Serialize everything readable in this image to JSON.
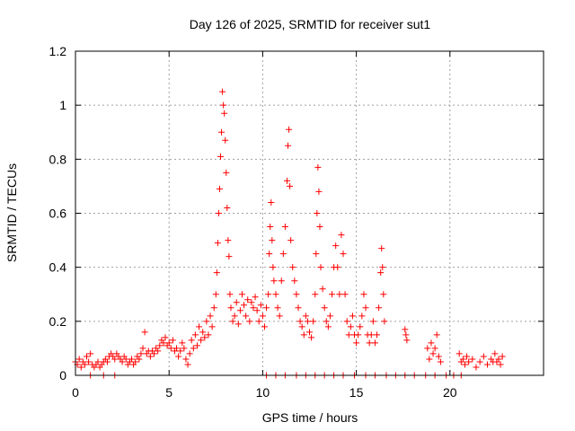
{
  "chart_data": {
    "type": "scatter",
    "title": "Day 126 of 2025, SRMTID for receiver sut1",
    "xlabel": "GPS time / hours",
    "ylabel": "SRMTID / TECUs",
    "xlim": [
      0,
      25
    ],
    "ylim": [
      0,
      1.2
    ],
    "xticks": [
      0,
      5,
      10,
      15,
      20
    ],
    "xtick_labels": [
      "0",
      "5",
      "10",
      "15",
      "20"
    ],
    "yticks": [
      0,
      0.2,
      0.4,
      0.6,
      0.8,
      1.0,
      1.2
    ],
    "ytick_labels": [
      "0",
      "0.2",
      "0.4",
      "0.6",
      "0.8",
      "1",
      "1.2"
    ],
    "grid": true,
    "marker": "plus",
    "color": "#ff0000",
    "series": [
      {
        "name": "sut1",
        "points": [
          [
            0.0,
            0.05
          ],
          [
            0.1,
            0.04
          ],
          [
            0.2,
            0.06
          ],
          [
            0.3,
            0.03
          ],
          [
            0.4,
            0.05
          ],
          [
            0.5,
            0.04
          ],
          [
            0.6,
            0.07
          ],
          [
            0.7,
            0.05
          ],
          [
            0.8,
            0.08
          ],
          [
            0.9,
            0.04
          ],
          [
            1.0,
            0.03
          ],
          [
            1.1,
            0.04
          ],
          [
            1.2,
            0.05
          ],
          [
            1.3,
            0.03
          ],
          [
            1.4,
            0.04
          ],
          [
            1.5,
            0.05
          ],
          [
            1.6,
            0.06
          ],
          [
            1.7,
            0.05
          ],
          [
            1.8,
            0.07
          ],
          [
            1.9,
            0.08
          ],
          [
            2.0,
            0.07
          ],
          [
            2.1,
            0.06
          ],
          [
            2.2,
            0.08
          ],
          [
            2.3,
            0.07
          ],
          [
            2.4,
            0.06
          ],
          [
            2.5,
            0.05
          ],
          [
            2.6,
            0.07
          ],
          [
            2.7,
            0.06
          ],
          [
            2.8,
            0.04
          ],
          [
            2.9,
            0.05
          ],
          [
            3.0,
            0.06
          ],
          [
            3.1,
            0.04
          ],
          [
            3.2,
            0.05
          ],
          [
            3.3,
            0.07
          ],
          [
            3.4,
            0.06
          ],
          [
            3.5,
            0.08
          ],
          [
            3.6,
            0.1
          ],
          [
            3.7,
            0.16
          ],
          [
            3.8,
            0.08
          ],
          [
            3.9,
            0.09
          ],
          [
            4.0,
            0.07
          ],
          [
            4.1,
            0.09
          ],
          [
            4.2,
            0.08
          ],
          [
            4.3,
            0.1
          ],
          [
            4.4,
            0.09
          ],
          [
            4.5,
            0.11
          ],
          [
            4.6,
            0.13
          ],
          [
            4.7,
            0.12
          ],
          [
            4.8,
            0.14
          ],
          [
            4.9,
            0.11
          ],
          [
            5.0,
            0.12
          ],
          [
            5.1,
            0.1
          ],
          [
            5.2,
            0.13
          ],
          [
            5.3,
            0.09
          ],
          [
            5.4,
            0.1
          ],
          [
            5.5,
            0.07
          ],
          [
            5.6,
            0.09
          ],
          [
            5.7,
            0.12
          ],
          [
            5.8,
            0.1
          ],
          [
            5.9,
            0.06
          ],
          [
            6.0,
            0.04
          ],
          [
            6.1,
            0.08
          ],
          [
            6.2,
            0.13
          ],
          [
            6.3,
            0.1
          ],
          [
            6.4,
            0.15
          ],
          [
            6.5,
            0.11
          ],
          [
            6.6,
            0.18
          ],
          [
            6.7,
            0.13
          ],
          [
            6.8,
            0.16
          ],
          [
            6.9,
            0.14
          ],
          [
            7.0,
            0.2
          ],
          [
            7.1,
            0.15
          ],
          [
            7.2,
            0.22
          ],
          [
            7.3,
            0.18
          ],
          [
            7.4,
            0.25
          ],
          [
            7.5,
            0.3
          ],
          [
            7.55,
            0.38
          ],
          [
            7.6,
            0.49
          ],
          [
            7.65,
            0.6
          ],
          [
            7.7,
            0.69
          ],
          [
            7.75,
            0.81
          ],
          [
            7.8,
            0.9
          ],
          [
            7.85,
            1.05
          ],
          [
            7.9,
            1.0
          ],
          [
            7.95,
            0.97
          ],
          [
            8.0,
            0.87
          ],
          [
            8.05,
            0.75
          ],
          [
            8.1,
            0.62
          ],
          [
            8.15,
            0.5
          ],
          [
            8.2,
            0.44
          ],
          [
            8.25,
            0.3
          ],
          [
            8.3,
            0.25
          ],
          [
            8.4,
            0.2
          ],
          [
            8.5,
            0.22
          ],
          [
            8.6,
            0.27
          ],
          [
            8.7,
            0.19
          ],
          [
            8.8,
            0.24
          ],
          [
            8.9,
            0.3
          ],
          [
            9.0,
            0.26
          ],
          [
            9.1,
            0.22
          ],
          [
            9.2,
            0.28
          ],
          [
            9.3,
            0.2
          ],
          [
            9.4,
            0.27
          ],
          [
            9.5,
            0.25
          ],
          [
            9.6,
            0.29
          ],
          [
            9.7,
            0.24
          ],
          [
            9.8,
            0.2
          ],
          [
            9.9,
            0.26
          ],
          [
            10.0,
            0.22
          ],
          [
            10.1,
            0.18
          ],
          [
            10.2,
            0.25
          ],
          [
            10.3,
            0.3
          ],
          [
            10.35,
            0.45
          ],
          [
            10.4,
            0.55
          ],
          [
            10.45,
            0.64
          ],
          [
            10.5,
            0.5
          ],
          [
            10.55,
            0.4
          ],
          [
            10.6,
            0.35
          ],
          [
            10.7,
            0.3
          ],
          [
            10.8,
            0.25
          ],
          [
            10.9,
            0.22
          ],
          [
            11.0,
            0.35
          ],
          [
            11.1,
            0.45
          ],
          [
            11.2,
            0.55
          ],
          [
            11.3,
            0.72
          ],
          [
            11.35,
            0.85
          ],
          [
            11.4,
            0.91
          ],
          [
            11.45,
            0.7
          ],
          [
            11.5,
            0.5
          ],
          [
            11.6,
            0.4
          ],
          [
            11.7,
            0.35
          ],
          [
            11.8,
            0.3
          ],
          [
            11.9,
            0.25
          ],
          [
            12.0,
            0.2
          ],
          [
            12.1,
            0.18
          ],
          [
            12.2,
            0.15
          ],
          [
            12.3,
            0.22
          ],
          [
            12.4,
            0.2
          ],
          [
            12.5,
            0.16
          ],
          [
            12.6,
            0.14
          ],
          [
            12.7,
            0.2
          ],
          [
            12.8,
            0.3
          ],
          [
            12.85,
            0.45
          ],
          [
            12.9,
            0.6
          ],
          [
            12.95,
            0.77
          ],
          [
            13.0,
            0.68
          ],
          [
            13.05,
            0.55
          ],
          [
            13.1,
            0.4
          ],
          [
            13.2,
            0.32
          ],
          [
            13.3,
            0.25
          ],
          [
            13.4,
            0.2
          ],
          [
            13.5,
            0.18
          ],
          [
            13.6,
            0.22
          ],
          [
            13.7,
            0.3
          ],
          [
            13.8,
            0.4
          ],
          [
            13.9,
            0.48
          ],
          [
            14.0,
            0.4
          ],
          [
            14.1,
            0.3
          ],
          [
            14.2,
            0.52
          ],
          [
            14.3,
            0.45
          ],
          [
            14.4,
            0.3
          ],
          [
            14.5,
            0.2
          ],
          [
            14.6,
            0.15
          ],
          [
            14.7,
            0.18
          ],
          [
            14.8,
            0.22
          ],
          [
            14.9,
            0.15
          ],
          [
            15.0,
            0.12
          ],
          [
            15.1,
            0.15
          ],
          [
            15.2,
            0.18
          ],
          [
            15.3,
            0.22
          ],
          [
            15.4,
            0.3
          ],
          [
            15.5,
            0.25
          ],
          [
            15.6,
            0.15
          ],
          [
            15.7,
            0.12
          ],
          [
            15.8,
            0.15
          ],
          [
            15.9,
            0.2
          ],
          [
            16.0,
            0.12
          ],
          [
            16.1,
            0.15
          ],
          [
            16.2,
            0.25
          ],
          [
            16.3,
            0.38
          ],
          [
            16.35,
            0.47
          ],
          [
            16.4,
            0.4
          ],
          [
            16.45,
            0.3
          ],
          [
            16.5,
            0.2
          ],
          [
            17.6,
            0.17
          ],
          [
            17.65,
            0.15
          ],
          [
            17.7,
            0.13
          ],
          [
            18.8,
            0.1
          ],
          [
            18.9,
            0.06
          ],
          [
            19.0,
            0.12
          ],
          [
            19.1,
            0.08
          ],
          [
            19.2,
            0.1
          ],
          [
            19.3,
            0.15
          ],
          [
            19.4,
            0.07
          ],
          [
            19.5,
            0.05
          ],
          [
            20.5,
            0.08
          ],
          [
            20.6,
            0.05
          ],
          [
            20.7,
            0.06
          ],
          [
            20.8,
            0.04
          ],
          [
            20.9,
            0.07
          ],
          [
            21.0,
            0.05
          ],
          [
            21.2,
            0.06
          ],
          [
            21.4,
            0.03
          ],
          [
            21.6,
            0.05
          ],
          [
            21.8,
            0.07
          ],
          [
            22.0,
            0.04
          ],
          [
            22.2,
            0.06
          ],
          [
            22.3,
            0.05
          ],
          [
            22.4,
            0.08
          ],
          [
            22.5,
            0.05
          ],
          [
            22.6,
            0.06
          ],
          [
            22.7,
            0.04
          ],
          [
            22.8,
            0.07
          ],
          [
            0.8,
            0.0
          ],
          [
            1.5,
            0.0
          ],
          [
            2.1,
            0.0
          ],
          [
            10.2,
            0.0
          ],
          [
            10.7,
            0.0
          ],
          [
            11.2,
            0.0
          ],
          [
            11.8,
            0.0
          ],
          [
            12.3,
            0.0
          ],
          [
            12.8,
            0.0
          ],
          [
            13.3,
            0.0
          ],
          [
            13.8,
            0.0
          ],
          [
            14.3,
            0.0
          ],
          [
            14.9,
            0.0
          ],
          [
            15.5,
            0.0
          ],
          [
            16.0,
            0.0
          ],
          [
            16.6,
            0.0
          ],
          [
            17.1,
            0.0
          ],
          [
            17.6,
            0.0
          ],
          [
            18.1,
            0.0
          ],
          [
            18.7,
            0.0
          ],
          [
            19.2,
            0.0
          ],
          [
            19.8,
            0.0
          ],
          [
            20.2,
            0.0
          ],
          [
            20.6,
            0.0
          ]
        ]
      }
    ]
  }
}
